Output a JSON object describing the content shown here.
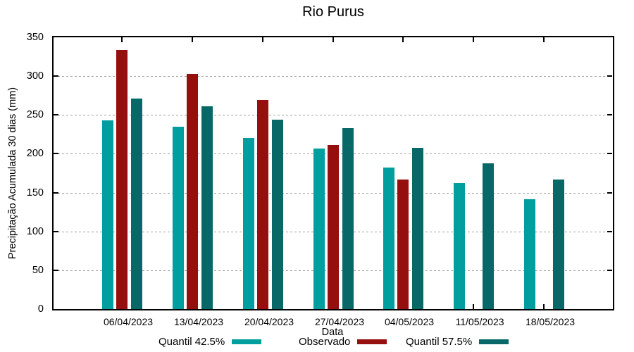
{
  "chart_data": {
    "type": "bar",
    "title": "Rio Purus",
    "xlabel": "Data",
    "ylabel": "Precipitação Acumulada 30 dias (mm)",
    "ylim": [
      0,
      350
    ],
    "ytick_step": 50,
    "grid": true,
    "legend_position": "bottom",
    "categories": [
      "06/04/2023",
      "13/04/2023",
      "20/04/2023",
      "27/04/2023",
      "04/05/2023",
      "11/05/2023",
      "18/05/2023"
    ],
    "series": [
      {
        "name": "Quantil 42.5%",
        "color": "#009E9E",
        "values": [
          243,
          235,
          220,
          207,
          182,
          162,
          141
        ]
      },
      {
        "name": "Observado",
        "color": "#960F0F",
        "values": [
          334,
          303,
          269,
          211,
          167,
          null,
          null
        ]
      },
      {
        "name": "Quantil 57.5%",
        "color": "#086767",
        "values": [
          271,
          261,
          244,
          233,
          208,
          188,
          167
        ]
      }
    ],
    "colors": {
      "grid": "#a0a0a0",
      "axis": "#000000",
      "text": "#000000"
    }
  }
}
